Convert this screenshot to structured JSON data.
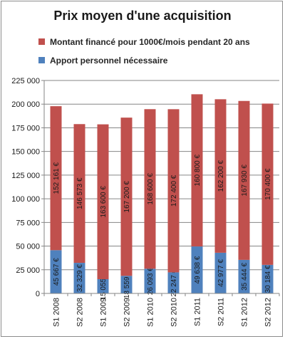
{
  "chart_data": {
    "type": "bar",
    "stacked": true,
    "title": "Prix moyen d'une acquisition",
    "categories": [
      "S1 2008",
      "S2 2008",
      "S1 2009",
      "S2 2009",
      "S1 2010",
      "S2 2010",
      "S1 2011",
      "S2 2011",
      "S1 2012",
      "S2 2012"
    ],
    "series": [
      {
        "name": "Apport personnel nécessaire",
        "color": "#4f81bd",
        "values": [
          45667,
          32329,
          15055,
          18559,
          26093,
          22247,
          49638,
          42977,
          35444,
          30184
        ],
        "labels": [
          "45 667 €",
          "32 329 €",
          "15 055 €",
          "18 559 €",
          "26 093 €",
          "22 247 €",
          "49 638 €",
          "42 977 €",
          "35 444 €",
          "30 184 €"
        ]
      },
      {
        "name": "Montant financé pour 1000€/mois  pendant 20 ans",
        "color": "#c0504d",
        "values": [
          152161,
          146573,
          163600,
          167200,
          168600,
          172400,
          160800,
          162200,
          167930,
          170400
        ],
        "labels": [
          "152 161 €",
          "146 573 €",
          "163 600 €",
          "167 200 €",
          "168 600 €",
          "172 400 €",
          "160 800 €",
          "162 200 €",
          "167 930 €",
          "170 400 €"
        ]
      }
    ],
    "ylim": [
      0,
      225000
    ],
    "yticks": [
      0,
      25000,
      50000,
      75000,
      100000,
      125000,
      150000,
      175000,
      200000,
      225000
    ],
    "ytick_labels": [
      "0",
      "25 000",
      "50 000",
      "75 000",
      "100 000",
      "125 000",
      "150 000",
      "175 000",
      "200 000",
      "225 000"
    ],
    "grid": true,
    "legend_position": "top"
  }
}
